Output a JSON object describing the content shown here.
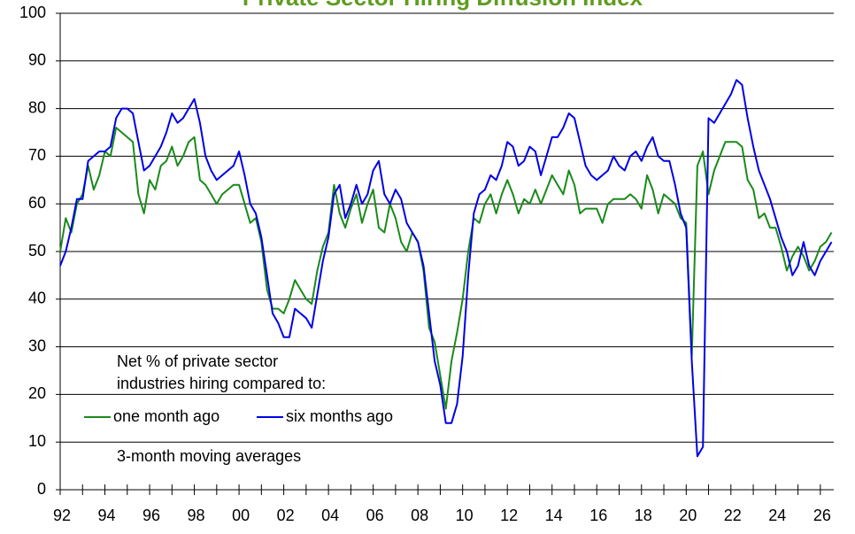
{
  "chart_data": {
    "type": "line",
    "title": "Private Sector Hiring Diffusion Index",
    "annotations": [
      "Net % of private sector",
      "industries hiring compared to:",
      "3-month moving averages"
    ],
    "x": [
      1992,
      1992.25,
      1992.5,
      1992.75,
      1993,
      1993.25,
      1993.5,
      1993.75,
      1994,
      1994.25,
      1994.5,
      1994.75,
      1995,
      1995.25,
      1995.5,
      1995.75,
      1996,
      1996.25,
      1996.5,
      1996.75,
      1997,
      1997.25,
      1997.5,
      1997.75,
      1998,
      1998.25,
      1998.5,
      1998.75,
      1999,
      1999.25,
      1999.5,
      1999.75,
      2000,
      2000.25,
      2000.5,
      2000.75,
      2001,
      2001.25,
      2001.5,
      2001.75,
      2002,
      2002.25,
      2002.5,
      2002.75,
      2003,
      2003.25,
      2003.5,
      2003.75,
      2004,
      2004.25,
      2004.5,
      2004.75,
      2005,
      2005.25,
      2005.5,
      2005.75,
      2006,
      2006.25,
      2006.5,
      2006.75,
      2007,
      2007.25,
      2007.5,
      2007.75,
      2008,
      2008.25,
      2008.5,
      2008.75,
      2009,
      2009.25,
      2009.5,
      2009.75,
      2010,
      2010.25,
      2010.5,
      2010.75,
      2011,
      2011.25,
      2011.5,
      2011.75,
      2012,
      2012.25,
      2012.5,
      2012.75,
      2013,
      2013.25,
      2013.5,
      2013.75,
      2014,
      2014.25,
      2014.5,
      2014.75,
      2015,
      2015.25,
      2015.5,
      2015.75,
      2016,
      2016.25,
      2016.5,
      2016.75,
      2017,
      2017.25,
      2017.5,
      2017.75,
      2018,
      2018.25,
      2018.5,
      2018.75,
      2019,
      2019.25,
      2019.5,
      2019.75,
      2020,
      2020.25,
      2020.5,
      2020.75,
      2021,
      2021.25,
      2021.5,
      2021.75,
      2022,
      2022.25,
      2022.5,
      2022.75,
      2023,
      2023.25,
      2023.5,
      2023.75,
      2024,
      2024.25,
      2024.5,
      2024.75,
      2025,
      2025.25,
      2025.5,
      2025.75,
      2026,
      2026.25,
      2026.5
    ],
    "series": [
      {
        "name": "one month ago",
        "color": "#1a8a1a",
        "values": [
          50,
          57,
          54,
          60,
          62,
          68,
          63,
          66,
          71,
          70,
          76,
          75,
          74,
          73,
          62,
          58,
          65,
          63,
          68,
          69,
          72,
          68,
          70,
          73,
          74,
          65,
          64,
          62,
          60,
          62,
          63,
          64,
          64,
          60,
          56,
          57,
          52,
          42,
          38,
          38,
          37,
          40,
          44,
          42,
          40,
          39,
          46,
          51,
          54,
          64,
          58,
          55,
          59,
          62,
          56,
          60,
          63,
          55,
          54,
          60,
          57,
          52,
          50,
          54,
          52,
          46,
          34,
          31,
          24,
          17,
          27,
          33,
          40,
          50,
          57,
          56,
          60,
          62,
          58,
          62,
          65,
          62,
          58,
          61,
          60,
          63,
          60,
          63,
          66,
          64,
          62,
          67,
          64,
          58,
          59,
          59,
          59,
          56,
          60,
          61,
          61,
          61,
          62,
          61,
          59,
          66,
          63,
          58,
          62,
          61,
          60,
          57,
          56,
          28,
          68,
          71,
          62,
          67,
          70,
          73,
          73,
          73,
          72,
          65,
          63,
          57,
          58,
          55,
          55,
          51,
          46,
          49,
          51,
          49,
          46,
          48,
          51,
          52,
          54
        ]
      },
      {
        "name": "six months ago",
        "color": "#0000e6",
        "values": [
          47,
          50,
          55,
          61,
          61,
          69,
          70,
          71,
          71,
          72,
          78,
          80,
          80,
          79,
          73,
          67,
          68,
          70,
          72,
          75,
          79,
          77,
          78,
          80,
          82,
          77,
          70,
          67,
          65,
          66,
          67,
          68,
          71,
          66,
          60,
          58,
          53,
          45,
          37,
          35,
          32,
          32,
          38,
          37,
          36,
          34,
          41,
          48,
          53,
          62,
          64,
          57,
          60,
          64,
          60,
          62,
          67,
          69,
          62,
          60,
          63,
          61,
          56,
          54,
          52,
          47,
          37,
          27,
          22,
          14,
          14,
          18,
          28,
          45,
          58,
          62,
          63,
          66,
          65,
          68,
          73,
          72,
          68,
          69,
          72,
          71,
          66,
          70,
          74,
          74,
          76,
          79,
          78,
          73,
          68,
          66,
          65,
          66,
          67,
          70,
          68,
          67,
          70,
          71,
          69,
          72,
          74,
          70,
          69,
          69,
          64,
          58,
          55,
          27,
          7,
          9,
          78,
          77,
          79,
          81,
          83,
          86,
          85,
          78,
          72,
          67,
          64,
          61,
          57,
          53,
          50,
          45,
          47,
          52,
          47,
          45,
          48,
          50,
          52
        ]
      }
    ],
    "xlim": [
      1992,
      2026.6
    ],
    "ylim": [
      0,
      100
    ],
    "xticks": [
      {
        "value": 1992,
        "label": "92"
      },
      {
        "value": 1994,
        "label": "94"
      },
      {
        "value": 1996,
        "label": "96"
      },
      {
        "value": 1998,
        "label": "98"
      },
      {
        "value": 2000,
        "label": "00"
      },
      {
        "value": 2002,
        "label": "02"
      },
      {
        "value": 2004,
        "label": "04"
      },
      {
        "value": 2006,
        "label": "06"
      },
      {
        "value": 2008,
        "label": "08"
      },
      {
        "value": 2010,
        "label": "10"
      },
      {
        "value": 2012,
        "label": "12"
      },
      {
        "value": 2014,
        "label": "14"
      },
      {
        "value": 2016,
        "label": "16"
      },
      {
        "value": 2018,
        "label": "18"
      },
      {
        "value": 2020,
        "label": "20"
      },
      {
        "value": 2022,
        "label": "22"
      },
      {
        "value": 2024,
        "label": "24"
      },
      {
        "value": 2026,
        "label": "26"
      }
    ],
    "yticks": [
      0,
      10,
      20,
      30,
      40,
      50,
      60,
      70,
      80,
      90,
      100
    ],
    "grid": true
  }
}
